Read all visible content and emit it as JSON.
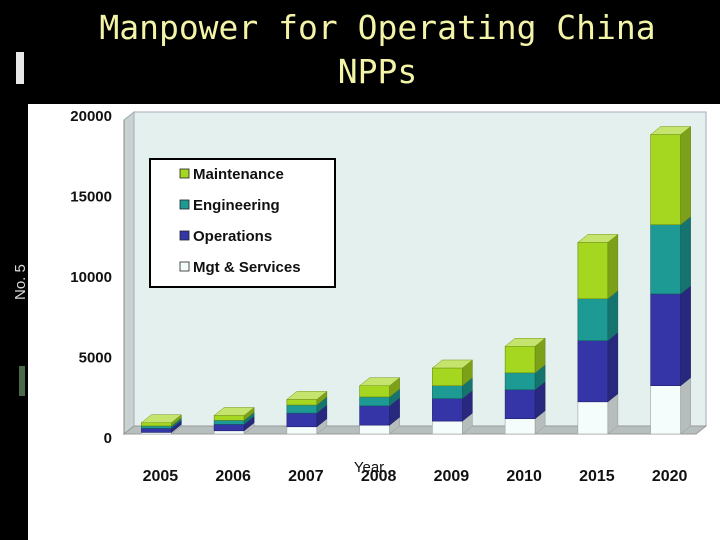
{
  "slide": {
    "title": "Manpower for Operating China NPPs",
    "side_text": "No. 5"
  },
  "colors": {
    "background": "#000000",
    "title": "#f4f4a8",
    "plot_bg": "#e3f0ee",
    "maintenance": "#a5d620",
    "engineering": "#1d9a94",
    "operations": "#3535a8",
    "mgt_services": "#f4fcfc"
  },
  "chart_data": {
    "type": "bar",
    "stacked": true,
    "three_d": true,
    "title": "",
    "xlabel": "Year",
    "ylabel": "",
    "ylim": [
      0,
      20000
    ],
    "yticks": [
      0,
      5000,
      10000,
      15000,
      20000
    ],
    "categories": [
      "2005",
      "2006",
      "2007",
      "2008",
      "2009",
      "2010",
      "2015",
      "2020"
    ],
    "series": [
      {
        "name": "Mgt & Services",
        "values": [
          100,
          200,
          450,
          550,
          800,
          950,
          2000,
          3000
        ]
      },
      {
        "name": "Operations",
        "values": [
          250,
          400,
          850,
          1200,
          1400,
          1800,
          3800,
          5700
        ]
      },
      {
        "name": "Engineering",
        "values": [
          150,
          250,
          500,
          550,
          800,
          1050,
          2600,
          4300
        ]
      },
      {
        "name": "Maintenance",
        "values": [
          200,
          300,
          350,
          700,
          1100,
          1650,
          3500,
          5600
        ]
      }
    ],
    "legend": {
      "position": "top-left",
      "order": [
        "Maintenance",
        "Engineering",
        "Operations",
        "Mgt & Services"
      ]
    },
    "grid": false
  }
}
